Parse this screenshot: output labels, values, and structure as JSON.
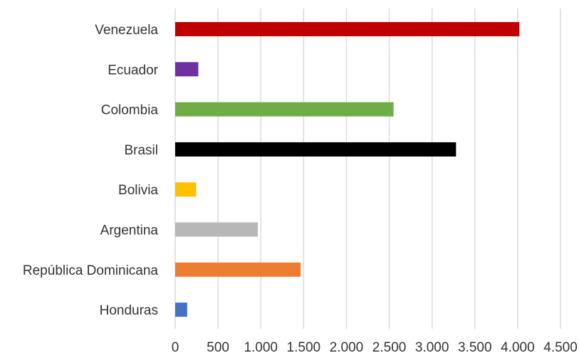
{
  "chart_data": {
    "type": "bar",
    "orientation": "horizontal",
    "title": "",
    "xlabel": "",
    "ylabel": "",
    "xlim": [
      0,
      4500
    ],
    "grid": true,
    "legend": "none",
    "categories": [
      "Venezuela",
      "Ecuador",
      "Colombia",
      "Brasil",
      "Bolivia",
      "Argentina",
      "República Dominicana",
      "Honduras"
    ],
    "values": [
      4020,
      270,
      2550,
      3280,
      245,
      965,
      1465,
      140
    ],
    "colors": [
      "#c00000",
      "#7030a0",
      "#70ad47",
      "#000000",
      "#ffc000",
      "#b7b7b7",
      "#ed7d31",
      "#4472c4"
    ],
    "x_ticks": [
      0,
      500,
      1000,
      1500,
      2000,
      2500,
      3000,
      3500,
      4000,
      4500
    ],
    "x_tick_labels": [
      "0",
      "500",
      "1.000",
      "1.500",
      "2.000",
      "2.500",
      "3.000",
      "3.500",
      "4.000",
      "4.500"
    ]
  }
}
